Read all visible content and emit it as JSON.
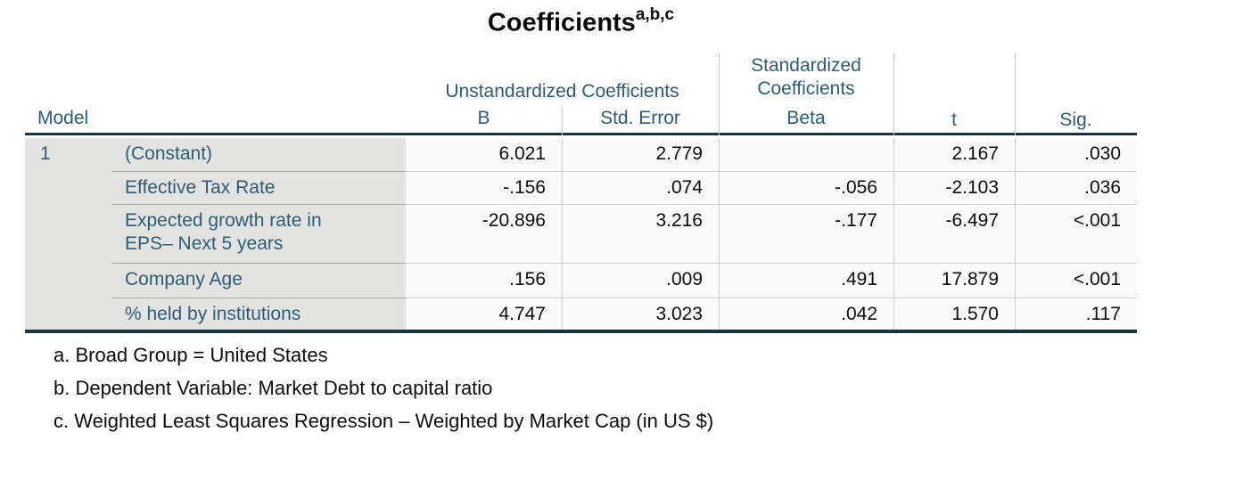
{
  "title": {
    "text": "Coefficients",
    "superscript": "a,b,c"
  },
  "table": {
    "corner_label": "Model",
    "group_headers": {
      "unstandardized": "Unstandardized Coefficients",
      "standardized": "Standardized Coefficients"
    },
    "column_headers": {
      "b": "B",
      "std_error": "Std. Error",
      "beta": "Beta",
      "t": "t",
      "sig": "Sig."
    },
    "model_number": "1",
    "rows": [
      {
        "label": "(Constant)",
        "b": "6.021",
        "std_error": "2.779",
        "beta": "",
        "t": "2.167",
        "sig": ".030"
      },
      {
        "label": "Effective Tax Rate",
        "b": "-.156",
        "std_error": ".074",
        "beta": "-.056",
        "t": "-2.103",
        "sig": ".036"
      },
      {
        "label": "Expected growth rate in EPS– Next 5 years",
        "b": "-20.896",
        "std_error": "3.216",
        "beta": "-.177",
        "t": "-6.497",
        "sig": "<.001"
      },
      {
        "label": "Company Age",
        "b": ".156",
        "std_error": ".009",
        "beta": ".491",
        "t": "17.879",
        "sig": "<.001"
      },
      {
        "label": "% held by institutions",
        "b": "4.747",
        "std_error": "3.023",
        "beta": ".042",
        "t": "1.570",
        "sig": ".117"
      }
    ]
  },
  "footnotes": [
    "a. Broad Group = United States",
    "b. Dependent Variable: Market Debt to capital ratio",
    "c. Weighted Least Squares Regression – Weighted by Market Cap (in US $)"
  ],
  "colors": {
    "header_text": "#2e5c76",
    "table_rule": "#17333f",
    "label_background": "#e3e3e1",
    "data_background": "#fafafa"
  }
}
